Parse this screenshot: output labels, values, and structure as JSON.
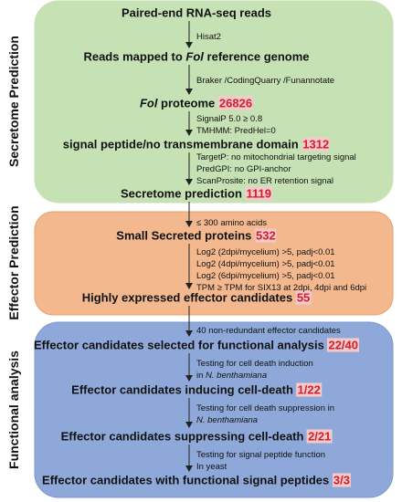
{
  "sections": [
    {
      "label": "Secretome Prediction"
    },
    {
      "label": "Effector Prediction"
    },
    {
      "label": "Functional analysis"
    }
  ],
  "steps": [
    {
      "runs": [
        "Paired-end RNA-seq reads"
      ]
    },
    {
      "runs": [
        "Reads mapped to ",
        {
          "text": "Fol",
          "italic": true
        },
        " reference genome"
      ]
    },
    {
      "runs": [
        {
          "text": "Fol",
          "italic": true
        },
        " proteome "
      ],
      "count": 26826
    },
    {
      "runs": [
        "signal peptide/no transmembrane domain "
      ],
      "count": 1312
    },
    {
      "runs": [
        "Secretome prediction "
      ],
      "count": 1119
    },
    {
      "runs": [
        "Small Secreted proteins "
      ],
      "count": 532
    },
    {
      "runs": [
        "Highly expressed effector candidates "
      ],
      "count": 55
    },
    {
      "runs": [
        "Effector candidates selected for functional analysis "
      ],
      "count": "22/40"
    },
    {
      "runs": [
        "Effector candidates inducing cell-death "
      ],
      "count": "1/22"
    },
    {
      "runs": [
        "Effector candidates suppressing cell-death "
      ],
      "count": "2/21"
    },
    {
      "runs": [
        "Effector candidates with functional signal peptides "
      ],
      "count": "3/3"
    }
  ],
  "notes": [
    {
      "lines": [
        [
          "Hisat2"
        ]
      ]
    },
    {
      "lines": [
        [
          "Braker /CodingQuarry /Funannotate"
        ]
      ]
    },
    {
      "lines": [
        [
          "SignalP 5.0 ≥ 0.8"
        ],
        [
          "TMHMM: PredHel=0"
        ]
      ]
    },
    {
      "lines": [
        [
          "TargetP: no mitochondrial targeting signal"
        ],
        [
          "PredGPI: no GPI-anchor"
        ],
        [
          "ScanProsite: no ER retention signal"
        ]
      ]
    },
    {
      "lines": [
        [
          "≤ 300 amino acids"
        ]
      ]
    },
    {
      "lines": [
        [
          "Log2 (2dpi/mycelium) >5, padj<0.01"
        ],
        [
          "Log2 (4dpi/mycelium) >5, padj<0.01"
        ],
        [
          "Log2 (6dpi/mycelium) >5, padj<0.01"
        ],
        [
          "TPM ≥ TPM for SIX13 at 2dpi, 4dpi and 6dpi"
        ]
      ]
    },
    {
      "lines": [
        [
          "40 non-redundant effector candidates"
        ]
      ]
    },
    {
      "lines": [
        [
          "Testing for cell death induction"
        ],
        [
          "in ",
          {
            "text": "N. benthamiana",
            "italic": true
          }
        ]
      ]
    },
    {
      "lines": [
        [
          "Testing for cell death suppression in"
        ],
        [
          {
            "text": "N. benthamiana",
            "italic": true
          }
        ]
      ]
    },
    {
      "lines": [
        [
          "Testing for signal peptide function"
        ],
        [
          "In yeast"
        ]
      ]
    }
  ]
}
